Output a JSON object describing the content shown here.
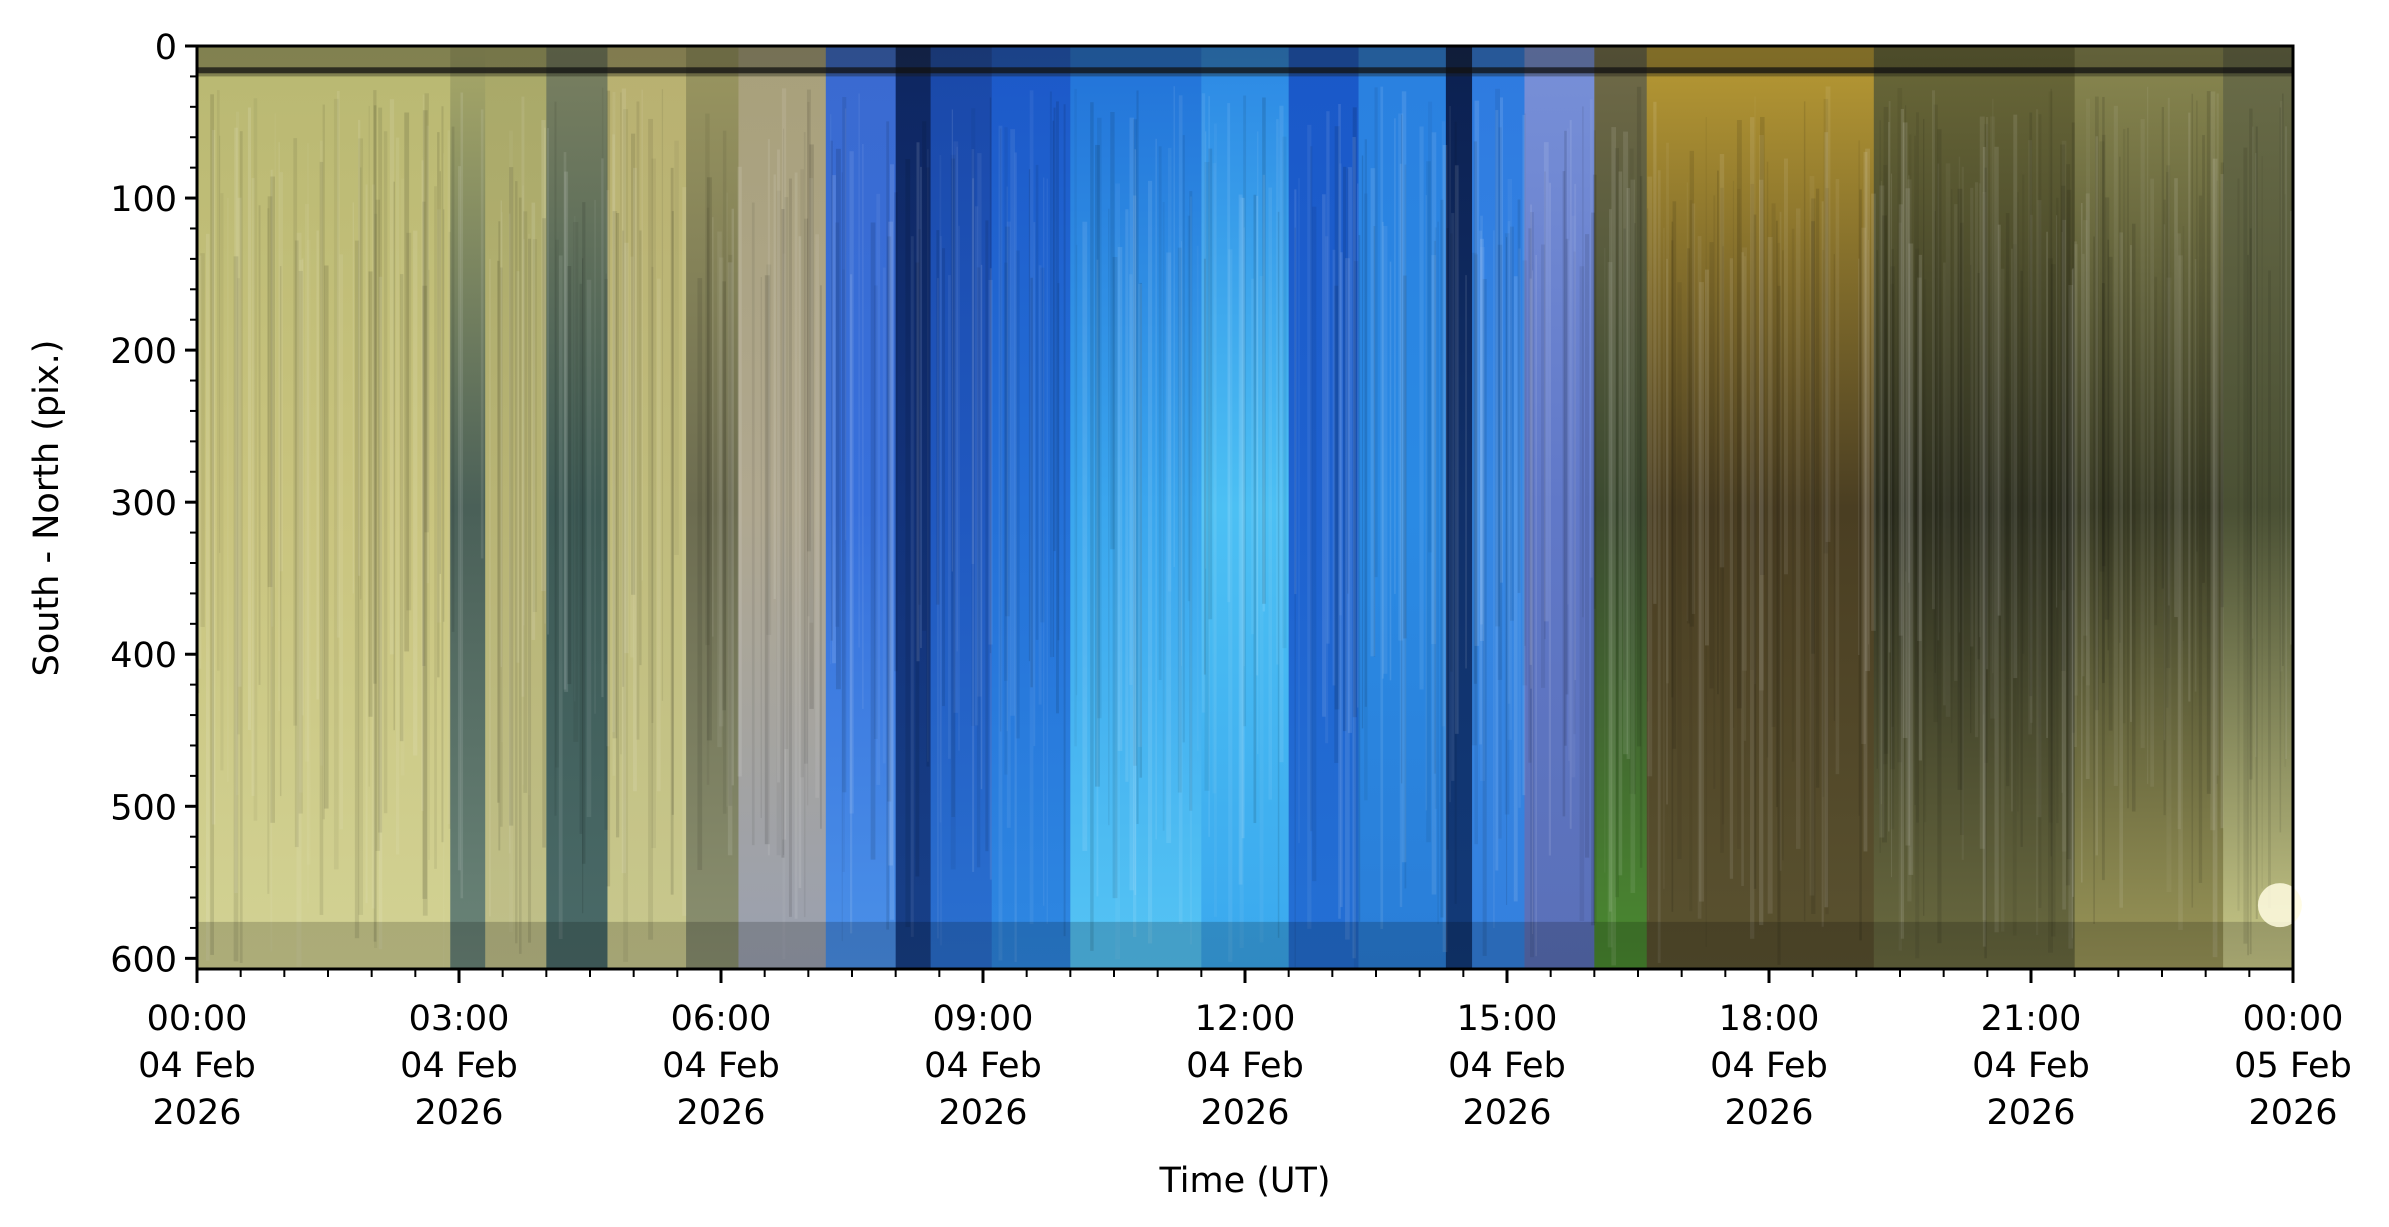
{
  "chart_data": {
    "type": "heatmap",
    "subtype": "keogram",
    "title": "",
    "xlabel": "Time (UT)",
    "ylabel": "South - North (pix.)",
    "xlim_hours": [
      0,
      24
    ],
    "ylim": [
      607,
      0
    ],
    "y_ticks": [
      0,
      100,
      200,
      300,
      400,
      500,
      600
    ],
    "y_minor_step": 20,
    "x_minor_step_hours": 0.5,
    "x_ticks": [
      {
        "hour": 0,
        "time": "00:00",
        "date": "04 Feb",
        "year": "2026"
      },
      {
        "hour": 3,
        "time": "03:00",
        "date": "04 Feb",
        "year": "2026"
      },
      {
        "hour": 6,
        "time": "06:00",
        "date": "04 Feb",
        "year": "2026"
      },
      {
        "hour": 9,
        "time": "09:00",
        "date": "04 Feb",
        "year": "2026"
      },
      {
        "hour": 12,
        "time": "12:00",
        "date": "04 Feb",
        "year": "2026"
      },
      {
        "hour": 15,
        "time": "15:00",
        "date": "04 Feb",
        "year": "2026"
      },
      {
        "hour": 18,
        "time": "18:00",
        "date": "04 Feb",
        "year": "2026"
      },
      {
        "hour": 21,
        "time": "21:00",
        "date": "04 Feb",
        "year": "2026"
      },
      {
        "hour": 24,
        "time": "00:00",
        "date": "05 Feb",
        "year": "2026"
      }
    ],
    "bands": [
      {
        "start": 0.0,
        "end": 2.9,
        "top": "#b9b872",
        "mid": "#c9c47e",
        "bottom": "#d2d294"
      },
      {
        "start": 2.9,
        "end": 3.3,
        "top": "#a8a868",
        "mid": "#4a6058",
        "bottom": "#6a8478"
      },
      {
        "start": 3.3,
        "end": 4.0,
        "top": "#a8a868",
        "mid": "#b8b474",
        "bottom": "#c0c08a"
      },
      {
        "start": 4.0,
        "end": 4.7,
        "top": "#7a8060",
        "mid": "#3d5a55",
        "bottom": "#4a6a68"
      },
      {
        "start": 4.7,
        "end": 5.6,
        "top": "#b8b070",
        "mid": "#c0bc7c",
        "bottom": "#c8c88e"
      },
      {
        "start": 5.6,
        "end": 6.2,
        "top": "#9a9660",
        "mid": "#6c6c50",
        "bottom": "#8a9070"
      },
      {
        "start": 6.2,
        "end": 7.2,
        "top": "#a8a07a",
        "mid": "#b0a890",
        "bottom": "#9aa0b0"
      },
      {
        "start": 7.2,
        "end": 8.0,
        "top": "#3a6ad0",
        "mid": "#3770dc",
        "bottom": "#4a90e8"
      },
      {
        "start": 8.0,
        "end": 8.4,
        "top": "#0e2660",
        "mid": "#12327a",
        "bottom": "#184088"
      },
      {
        "start": 8.4,
        "end": 9.1,
        "top": "#1a48a8",
        "mid": "#2058c0",
        "bottom": "#2a70d0"
      },
      {
        "start": 9.1,
        "end": 10.0,
        "top": "#1c58c8",
        "mid": "#2470d8",
        "bottom": "#2e88e2"
      },
      {
        "start": 10.0,
        "end": 11.5,
        "top": "#2272d8",
        "mid": "#3aa6ee",
        "bottom": "#55c4f4"
      },
      {
        "start": 11.5,
        "end": 12.5,
        "top": "#2c88e4",
        "mid": "#4cc0f4",
        "bottom": "#3aa8ee"
      },
      {
        "start": 12.5,
        "end": 13.3,
        "top": "#1a58c8",
        "mid": "#1e62d0",
        "bottom": "#2470d4"
      },
      {
        "start": 13.3,
        "end": 14.3,
        "top": "#2a80e0",
        "mid": "#2a8ae4",
        "bottom": "#2a7ed8"
      },
      {
        "start": 14.3,
        "end": 14.6,
        "top": "#0c2050",
        "mid": "#10306a",
        "bottom": "#123a78"
      },
      {
        "start": 14.6,
        "end": 15.2,
        "top": "#2e7ae0",
        "mid": "#3688e4",
        "bottom": "#3480de"
      },
      {
        "start": 15.2,
        "end": 16.0,
        "top": "#7890d8",
        "mid": "#6078c8",
        "bottom": "#5a70b8"
      },
      {
        "start": 16.0,
        "end": 16.6,
        "top": "#706a48",
        "mid": "#3c4a30",
        "bottom": "#4a8a30"
      },
      {
        "start": 16.6,
        "end": 19.2,
        "top": "#b89a34",
        "mid": "#4a3e22",
        "bottom": "#5a5230"
      },
      {
        "start": 19.2,
        "end": 21.5,
        "top": "#6a6838",
        "mid": "#2e3020",
        "bottom": "#6a6a40"
      },
      {
        "start": 21.5,
        "end": 23.2,
        "top": "#8a8850",
        "mid": "#3a3c26",
        "bottom": "#9a9658"
      },
      {
        "start": 23.2,
        "end": 24.0,
        "top": "#6a6c48",
        "mid": "#4a5034",
        "bottom": "#c8c888"
      }
    ]
  }
}
